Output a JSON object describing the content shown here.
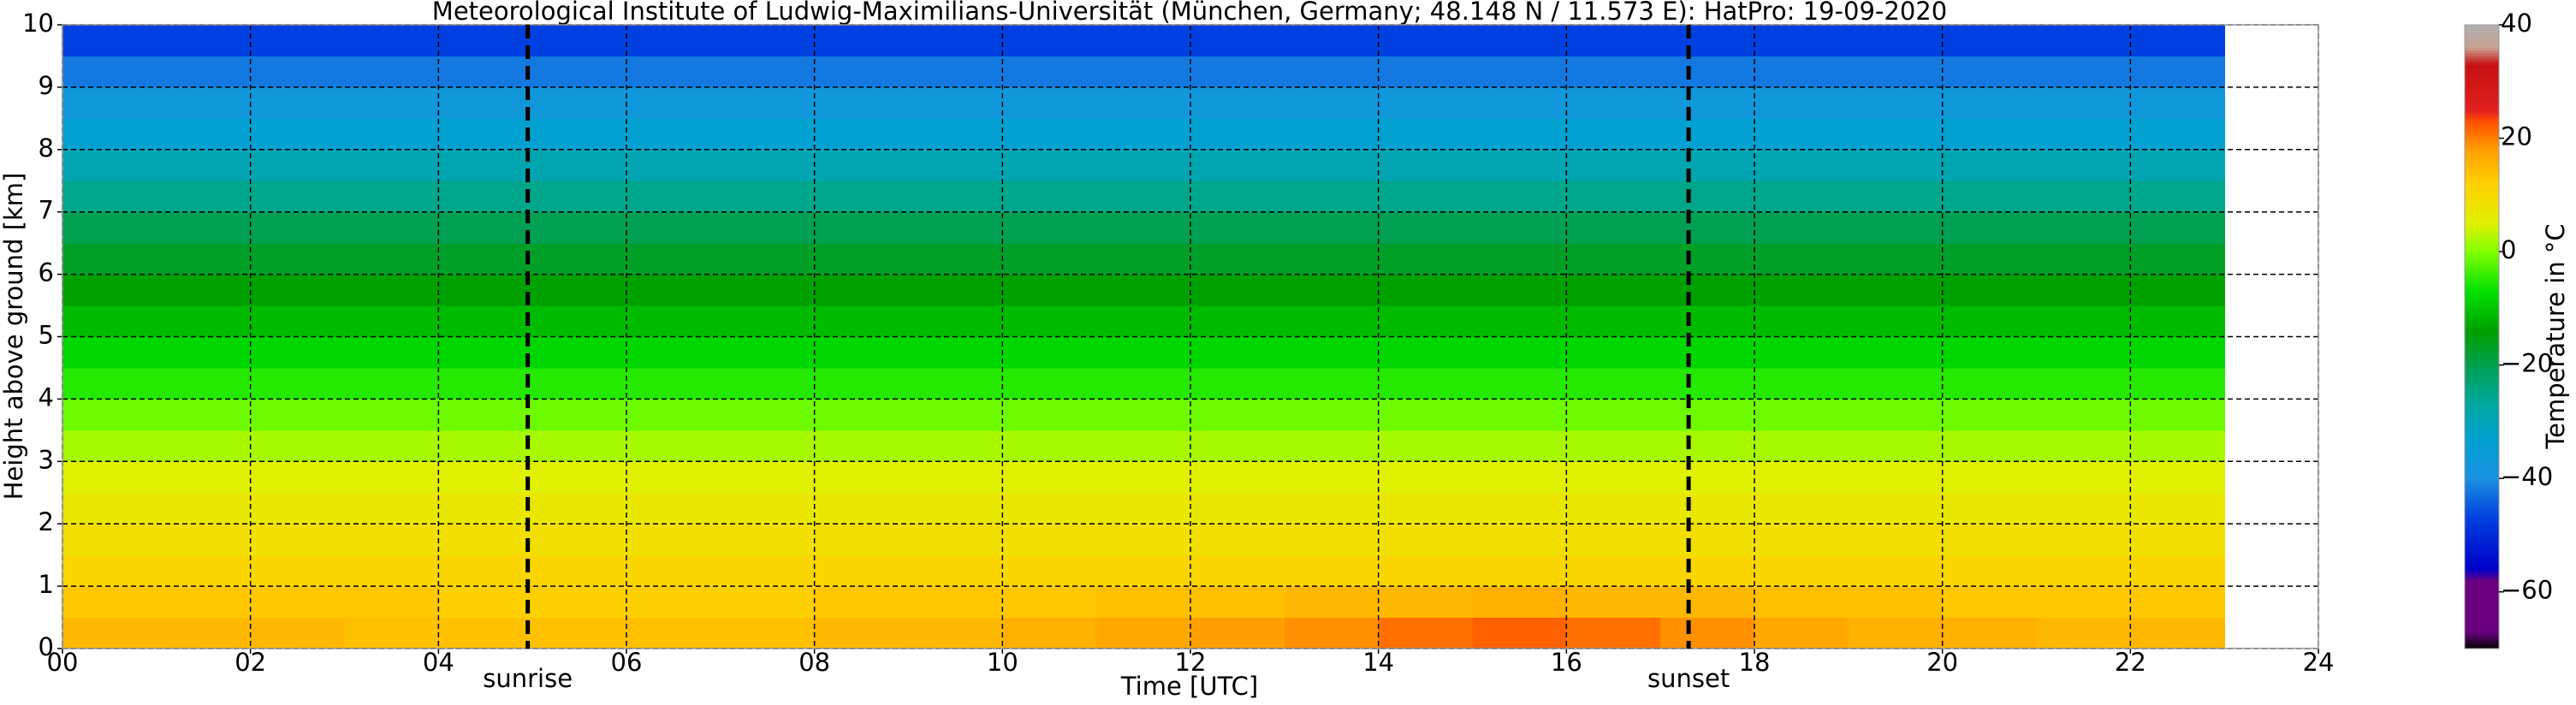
{
  "chart_data": {
    "type": "heatmap",
    "title": "Meteorological Institute of Ludwig-Maximilians-Universität (München, Germany; 48.148 N / 11.573 E):    HatPro: 19-09-2020",
    "xlabel": "Time [UTC]",
    "ylabel": "Height above ground [km]",
    "colorbar_label": "Temperature in °C",
    "xlim": [
      0,
      24
    ],
    "ylim": [
      0,
      10
    ],
    "xticks": [
      {
        "value": 0,
        "label": "00"
      },
      {
        "value": 2,
        "label": "02"
      },
      {
        "value": 4,
        "label": "04"
      },
      {
        "value": 6,
        "label": "06"
      },
      {
        "value": 8,
        "label": "08"
      },
      10,
      12,
      14,
      16,
      18,
      20,
      22,
      24
    ],
    "yticks": [
      0,
      1,
      2,
      3,
      4,
      5,
      6,
      7,
      8,
      9,
      10
    ],
    "grid": true,
    "clim": [
      -70,
      40
    ],
    "cticks": [
      {
        "value": -60,
        "label": "−60"
      },
      {
        "value": -40,
        "label": "−40"
      },
      {
        "value": -20,
        "label": "−20"
      },
      0,
      20,
      40
    ],
    "colorscale": [
      {
        "value": -70,
        "color": "#000000"
      },
      {
        "value": -67,
        "color": "#6a0080"
      },
      {
        "value": -58,
        "color": "#6a0080"
      },
      {
        "value": -56,
        "color": "#0000c8"
      },
      {
        "value": -47,
        "color": "#0040e0"
      },
      {
        "value": -40,
        "color": "#1a90e0"
      },
      {
        "value": -33,
        "color": "#00a0d0"
      },
      {
        "value": -27,
        "color": "#00a8a0"
      },
      {
        "value": -20,
        "color": "#00a050"
      },
      {
        "value": -14,
        "color": "#00a000"
      },
      {
        "value": -7,
        "color": "#00e000"
      },
      {
        "value": 0,
        "color": "#80ff00"
      },
      {
        "value": 5,
        "color": "#e0f000"
      },
      {
        "value": 12,
        "color": "#ffd000"
      },
      {
        "value": 18,
        "color": "#ffa000"
      },
      {
        "value": 23,
        "color": "#ff5000"
      },
      {
        "value": 25,
        "color": "#e02020"
      },
      {
        "value": 33,
        "color": "#c81010"
      },
      {
        "value": 36,
        "color": "#c8a090"
      },
      {
        "value": 40,
        "color": "#b0b0b0"
      }
    ],
    "x_edges": [
      0,
      1,
      2,
      3,
      4,
      5,
      6,
      7,
      8,
      9,
      10,
      11,
      12,
      13,
      14,
      15,
      16,
      17,
      18,
      19,
      20,
      21,
      22,
      23
    ],
    "y_edges": [
      0,
      0.5,
      1,
      1.5,
      2,
      2.5,
      3,
      3.5,
      4,
      4.5,
      5,
      5.5,
      6,
      6.5,
      7,
      7.5,
      8,
      8.5,
      9,
      9.5,
      10
    ],
    "z": [
      [
        15,
        15,
        15,
        14,
        14,
        14,
        14,
        14,
        15,
        15,
        16,
        17,
        18,
        19,
        21,
        22,
        21,
        19,
        17,
        16,
        16,
        15,
        15
      ],
      [
        13,
        13,
        13,
        13,
        12,
        12,
        12,
        12,
        13,
        13,
        13,
        14,
        14,
        15,
        15,
        16,
        15,
        15,
        14,
        14,
        13,
        13,
        13
      ],
      [
        11,
        11,
        11,
        11,
        11,
        11,
        11,
        11,
        11,
        11,
        11,
        11,
        11,
        11,
        11,
        11,
        11,
        11,
        11,
        11,
        11,
        11,
        11
      ],
      [
        9,
        9,
        9,
        9,
        9,
        9,
        9,
        9,
        9,
        9,
        9,
        9,
        9,
        9,
        9,
        9,
        9,
        9,
        9,
        9,
        9,
        9,
        9
      ],
      [
        7,
        7,
        7,
        7,
        7,
        7,
        7,
        7,
        7,
        7,
        7,
        7,
        7,
        7,
        7,
        7,
        7,
        7,
        7,
        7,
        7,
        7,
        7
      ],
      [
        5,
        5,
        5,
        5,
        5,
        5,
        5,
        5,
        5,
        5,
        5,
        5,
        5,
        5,
        5,
        5,
        5,
        5,
        5,
        5,
        5,
        5,
        5
      ],
      [
        2,
        2,
        2,
        2,
        2,
        2,
        2,
        2,
        2,
        2,
        2,
        2,
        2,
        2,
        2,
        2,
        2,
        2,
        2,
        2,
        2,
        2,
        2
      ],
      [
        -1,
        -1,
        -1,
        -1,
        -1,
        -1,
        -1,
        -1,
        -1,
        -1,
        -1,
        -1,
        -1,
        -1,
        -1,
        -1,
        -1,
        -1,
        -1,
        -1,
        -1,
        -1,
        -1
      ],
      [
        -5,
        -5,
        -5,
        -5,
        -5,
        -5,
        -5,
        -5,
        -5,
        -5,
        -5,
        -5,
        -5,
        -5,
        -5,
        -5,
        -5,
        -5,
        -5,
        -5,
        -5,
        -5,
        -5
      ],
      [
        -8,
        -8,
        -8,
        -8,
        -8,
        -8,
        -8,
        -8,
        -8,
        -8,
        -8,
        -8,
        -8,
        -8,
        -8,
        -8,
        -8,
        -8,
        -8,
        -8,
        -8,
        -8,
        -8
      ],
      [
        -11,
        -11,
        -11,
        -11,
        -11,
        -11,
        -11,
        -11,
        -11,
        -11,
        -11,
        -11,
        -11,
        -11,
        -11,
        -11,
        -11,
        -11,
        -11,
        -11,
        -11,
        -11,
        -11
      ],
      [
        -14,
        -14,
        -14,
        -14,
        -14,
        -14,
        -14,
        -14,
        -14,
        -14,
        -14,
        -14,
        -14,
        -14,
        -14,
        -14,
        -14,
        -14,
        -14,
        -14,
        -14,
        -14,
        -14
      ],
      [
        -17,
        -17,
        -17,
        -17,
        -17,
        -17,
        -17,
        -17,
        -17,
        -17,
        -17,
        -17,
        -17,
        -17,
        -17,
        -17,
        -17,
        -17,
        -17,
        -17,
        -17,
        -17,
        -17
      ],
      [
        -20,
        -20,
        -20,
        -20,
        -20,
        -20,
        -20,
        -20,
        -20,
        -20,
        -20,
        -20,
        -20,
        -20,
        -20,
        -20,
        -20,
        -20,
        -20,
        -20,
        -20,
        -20,
        -20
      ],
      [
        -25,
        -25,
        -25,
        -25,
        -25,
        -25,
        -25,
        -25,
        -25,
        -25,
        -25,
        -25,
        -25,
        -25,
        -25,
        -25,
        -25,
        -25,
        -25,
        -25,
        -25,
        -25,
        -25
      ],
      [
        -29,
        -29,
        -29,
        -29,
        -29,
        -29,
        -29,
        -29,
        -29,
        -29,
        -29,
        -29,
        -29,
        -29,
        -29,
        -29,
        -29,
        -29,
        -29,
        -29,
        -29,
        -29,
        -29
      ],
      [
        -33,
        -33,
        -33,
        -33,
        -33,
        -33,
        -33,
        -33,
        -33,
        -33,
        -33,
        -33,
        -33,
        -33,
        -33,
        -33,
        -33,
        -33,
        -33,
        -33,
        -33,
        -33,
        -33
      ],
      [
        -37,
        -37,
        -37,
        -37,
        -37,
        -37,
        -37,
        -37,
        -37,
        -37,
        -37,
        -37,
        -37,
        -37,
        -37,
        -37,
        -37,
        -37,
        -37,
        -37,
        -37,
        -37,
        -37
      ],
      [
        -42,
        -42,
        -42,
        -42,
        -42,
        -42,
        -42,
        -42,
        -42,
        -42,
        -42,
        -42,
        -42,
        -42,
        -42,
        -42,
        -42,
        -42,
        -42,
        -42,
        -42,
        -42,
        -42
      ],
      [
        -47,
        -47,
        -47,
        -47,
        -47,
        -47,
        -47,
        -47,
        -47,
        -47,
        -47,
        -47,
        -47,
        -47,
        -47,
        -47,
        -47,
        -47,
        -47,
        -47,
        -47,
        -47,
        -47
      ]
    ],
    "annotations": [
      {
        "text": "sunrise",
        "x": 4.95
      },
      {
        "text": "sunset",
        "x": 17.3
      }
    ]
  }
}
